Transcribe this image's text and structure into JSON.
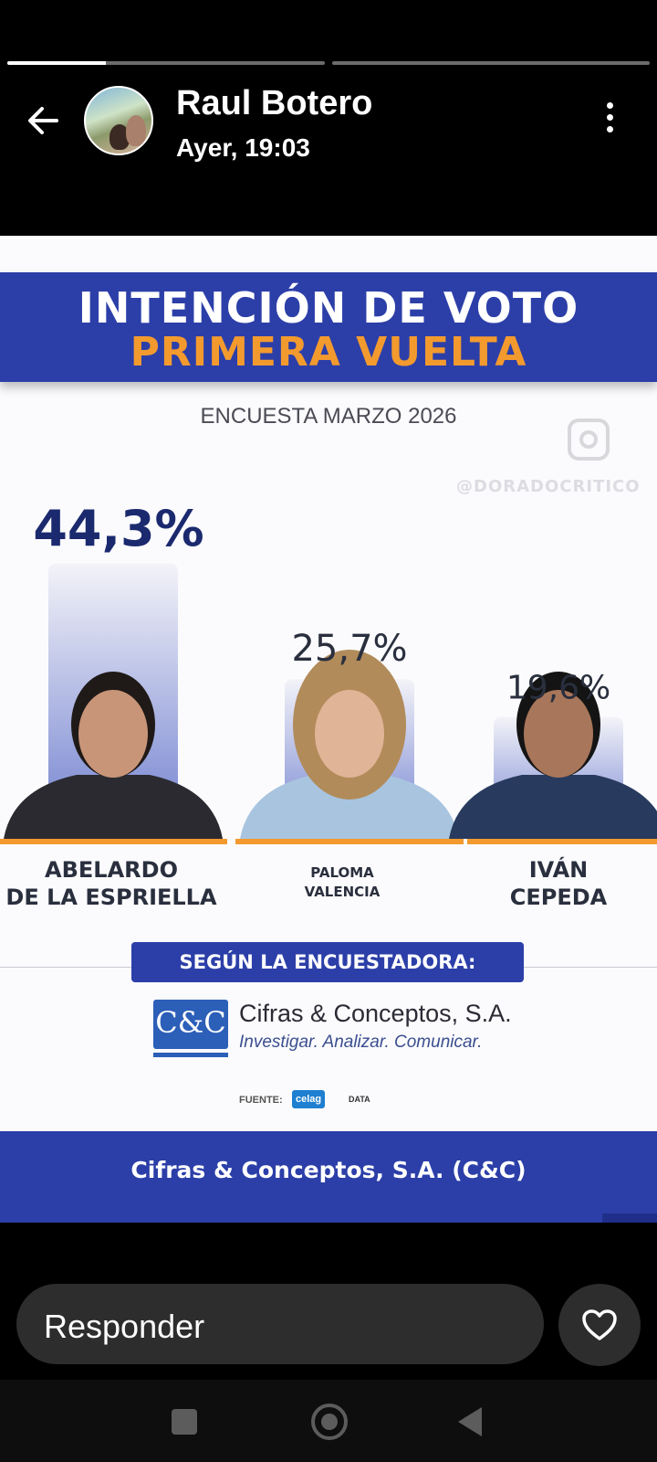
{
  "story": {
    "segments": [
      {
        "progress": 0.31
      },
      {
        "progress": 0.0
      }
    ]
  },
  "header": {
    "user_name": "Raul Botero",
    "timestamp": "Ayer, 19:03",
    "back_icon": "arrow-left-icon",
    "more_icon": "more-vertical-icon"
  },
  "poster": {
    "title_line1": "INTENCIÓN DE VOTO",
    "title_line2": "PRIMERA VUELTA",
    "subtitle": "ENCUESTA MARZO 2026",
    "watermark": "@DORADOCRITICO",
    "pollster_label": "SEGÚN LA ENCUESTADORA:",
    "company_logo_text": "C&C",
    "company_name": "Cifras & Conceptos, S.A.",
    "company_tagline": "Investigar. Analizar. Comunicar.",
    "source_label": "FUENTE:",
    "source_brand": "celag",
    "source_brand_suffix": "DATA",
    "footer_text": "Cifras & Conceptos, S.A. (C&C)",
    "colors": {
      "banner": "#2c3fa8",
      "accent": "#f39a2f",
      "bar": "#7f8fd6"
    }
  },
  "chart_data": {
    "type": "bar",
    "categories": [
      "ABELARDO DE LA ESPRIELLA",
      "PALOMA VALENCIA",
      "IVÁN CEPEDA"
    ],
    "category_lines": [
      [
        "ABELARDO",
        "DE LA ESPRIELLA"
      ],
      [
        "PALOMA",
        "VALENCIA"
      ],
      [
        "IVÁN",
        "CEPEDA"
      ]
    ],
    "values": [
      44.3,
      25.7,
      19.6
    ],
    "value_labels": [
      "44,3%",
      "25,7%",
      "19,6%"
    ],
    "ylim": [
      0,
      50
    ],
    "title": "",
    "xlabel": "",
    "ylabel": ""
  },
  "reply": {
    "placeholder": "Responder",
    "like_icon": "heart-icon"
  },
  "navigation": {
    "icons": [
      "recent-apps-icon",
      "home-icon",
      "back-triangle-icon"
    ]
  }
}
